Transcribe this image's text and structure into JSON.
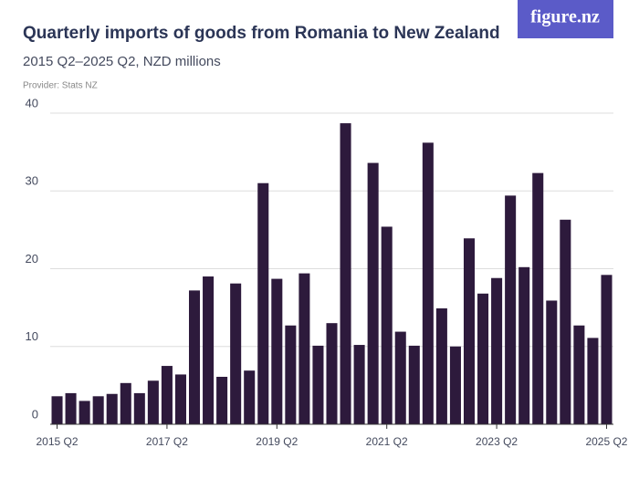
{
  "brand": "figure.nz",
  "chart_data": {
    "type": "bar",
    "title": "Quarterly imports of goods from Romania to New Zealand",
    "subtitle": "2015 Q2–2025 Q2, NZD millions",
    "source": "Provider: Stats NZ",
    "categories": [
      "2015 Q2",
      null,
      null,
      null,
      null,
      null,
      null,
      null,
      "2017 Q2",
      null,
      null,
      null,
      null,
      null,
      null,
      null,
      "2019 Q2",
      null,
      null,
      null,
      null,
      null,
      null,
      null,
      "2021 Q2",
      null,
      null,
      null,
      null,
      null,
      null,
      null,
      "2023 Q2",
      null,
      null,
      null,
      null,
      null,
      null,
      null,
      "2025 Q2"
    ],
    "values": [
      3.6,
      4.0,
      3.0,
      3.6,
      3.9,
      5.3,
      4.0,
      5.6,
      7.5,
      6.4,
      17.2,
      19.0,
      6.1,
      18.1,
      6.9,
      31.0,
      18.7,
      12.7,
      19.4,
      10.1,
      13.0,
      38.7,
      10.2,
      33.6,
      25.4,
      11.9,
      10.1,
      36.2,
      14.9,
      10.0,
      23.9,
      16.8,
      18.8,
      29.4,
      20.2,
      32.3,
      15.9,
      26.3,
      12.7,
      11.1,
      19.2
    ],
    "color": "#2d1a3c",
    "ylim": [
      0,
      40
    ],
    "yticks": [
      0,
      10,
      20,
      30,
      40
    ],
    "grid": true
  }
}
